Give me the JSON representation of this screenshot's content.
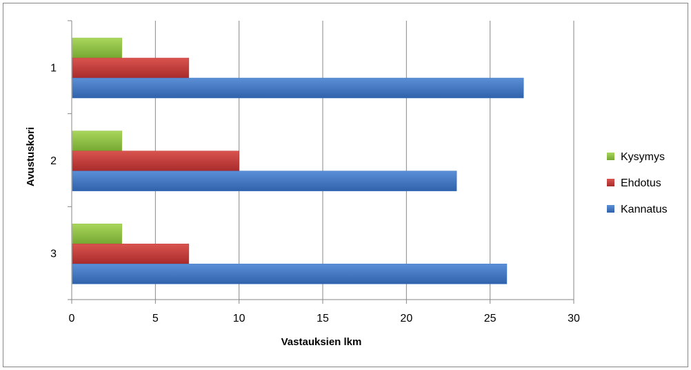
{
  "chart_data": {
    "type": "bar",
    "orientation": "horizontal",
    "categories": [
      "1",
      "2",
      "3"
    ],
    "series": [
      {
        "name": "Kysymys",
        "values": [
          3,
          3,
          3
        ],
        "color": "#8cbf3f"
      },
      {
        "name": "Ehdotus",
        "values": [
          7,
          10,
          7
        ],
        "color": "#c0393a"
      },
      {
        "name": "Kannatus",
        "values": [
          27,
          23,
          26
        ],
        "color": "#3f76c2"
      }
    ],
    "xlabel": "Vastauksien lkm",
    "ylabel": "Avustuskori",
    "xlim": [
      0,
      30
    ],
    "xticks": [
      0,
      5,
      10,
      15,
      20,
      25,
      30
    ],
    "grid": "vertical",
    "legend_position": "right"
  }
}
